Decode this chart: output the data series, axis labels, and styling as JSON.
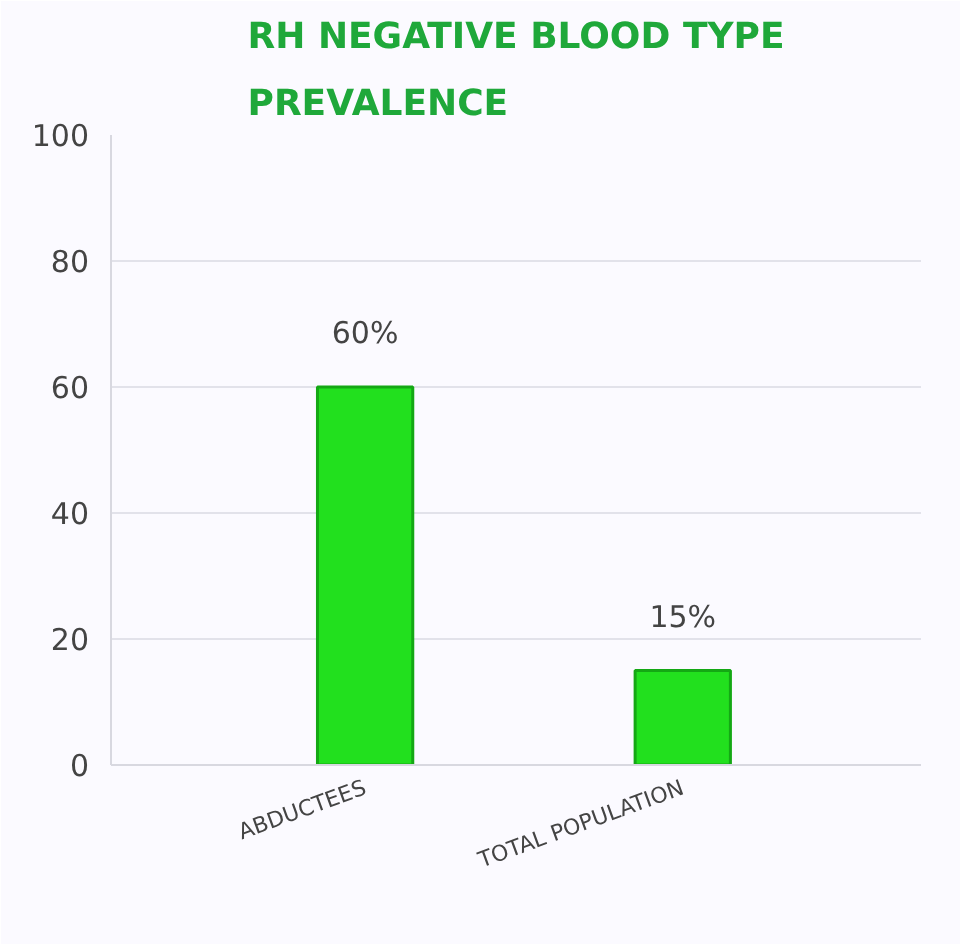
{
  "chart_data": {
    "type": "bar",
    "title": "RH NEGATIVE BLOOD TYPE PREVALENCE",
    "categories": [
      "ABDUCTEES",
      "TOTAL POPULATION"
    ],
    "values": [
      60,
      15
    ],
    "value_labels": [
      "60%",
      "15%"
    ],
    "color": "#22e01e",
    "ylim": [
      0,
      100
    ],
    "yticks": [
      0,
      20,
      40,
      60,
      80,
      100
    ],
    "grid": "y"
  }
}
